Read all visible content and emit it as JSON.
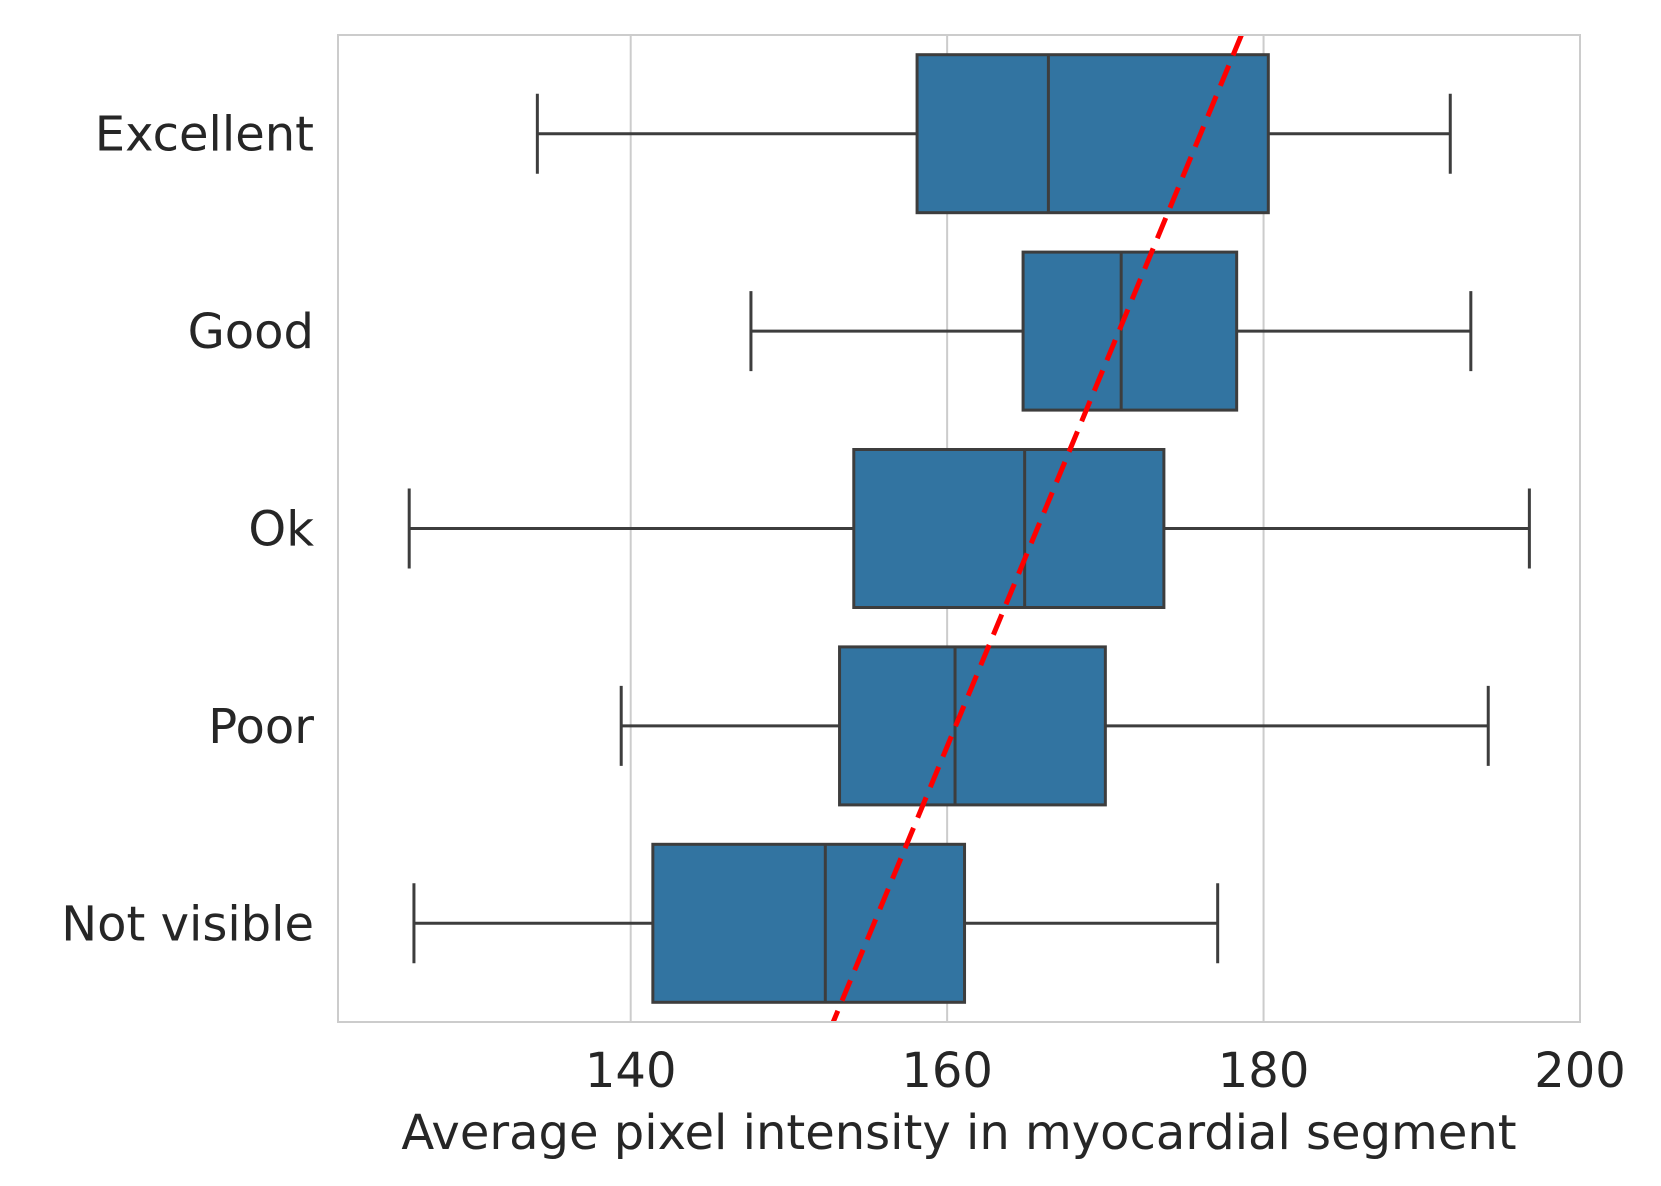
{
  "chart_data": {
    "type": "box",
    "orientation": "horizontal",
    "title": "",
    "xlabel": "Average pixel intensity in myocardial segment",
    "ylabel": "",
    "xlim": [
      121.5,
      200
    ],
    "xticks": [
      140,
      160,
      180,
      200
    ],
    "grid": "vertical",
    "categories": [
      "Excellent",
      "Good",
      "Ok",
      "Poor",
      "Not visible"
    ],
    "boxes": [
      {
        "category": "Excellent",
        "whisker_low": 134.1,
        "q1": 158.1,
        "median": 166.4,
        "q3": 180.3,
        "whisker_high": 191.8
      },
      {
        "category": "Good",
        "whisker_low": 147.6,
        "q1": 164.8,
        "median": 171.0,
        "q3": 178.3,
        "whisker_high": 193.1
      },
      {
        "category": "Ok",
        "whisker_low": 126.0,
        "q1": 154.1,
        "median": 164.9,
        "q3": 173.7,
        "whisker_high": 196.8
      },
      {
        "category": "Poor",
        "whisker_low": 139.4,
        "q1": 153.2,
        "median": 160.5,
        "q3": 170.0,
        "whisker_high": 194.2
      },
      {
        "category": "Not visible",
        "whisker_low": 126.3,
        "q1": 141.4,
        "median": 152.3,
        "q3": 161.1,
        "whisker_high": 177.1
      }
    ],
    "trend_line": {
      "style": "dashed",
      "color": "#ff0000",
      "x_at_top": 178.6,
      "x_at_bottom": 152.8
    },
    "box_color": "#3274a1",
    "line_color": "#3d3d3d",
    "grid_color": "#cccccc"
  }
}
